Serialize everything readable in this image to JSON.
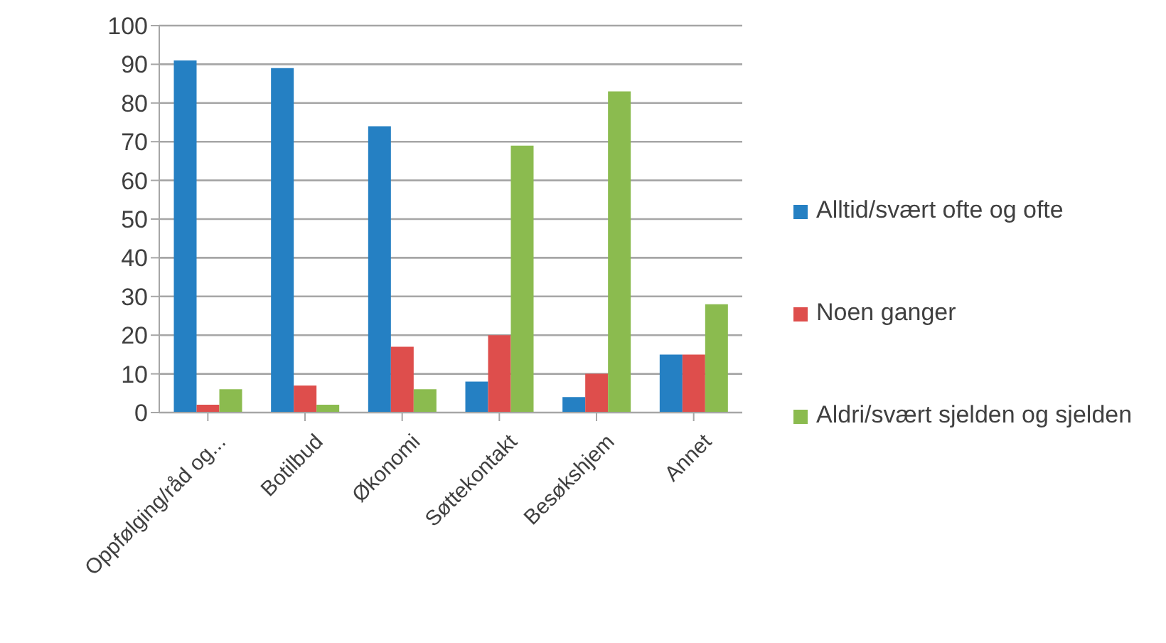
{
  "chart_data": {
    "type": "bar",
    "categories": [
      "Oppfølging/råd og...",
      "Botilbud",
      "Økonomi",
      "Søttekontakt",
      "Besøkshjem",
      "Annet"
    ],
    "series": [
      {
        "name": "Alltid/svært ofte og ofte",
        "color": "#2580c3",
        "values": [
          91,
          89,
          74,
          8,
          4,
          15
        ]
      },
      {
        "name": "Noen ganger",
        "color": "#de4e4c",
        "values": [
          2,
          7,
          17,
          20,
          10,
          15
        ]
      },
      {
        "name": "Aldri/svært sjelden og sjelden",
        "color": "#8bbb4f",
        "values": [
          6,
          2,
          6,
          69,
          83,
          28
        ]
      }
    ],
    "ylim": [
      0,
      100
    ],
    "yticks": [
      0,
      10,
      20,
      30,
      40,
      50,
      60,
      70,
      80,
      90,
      100
    ],
    "grid": "y",
    "legend": "right"
  }
}
